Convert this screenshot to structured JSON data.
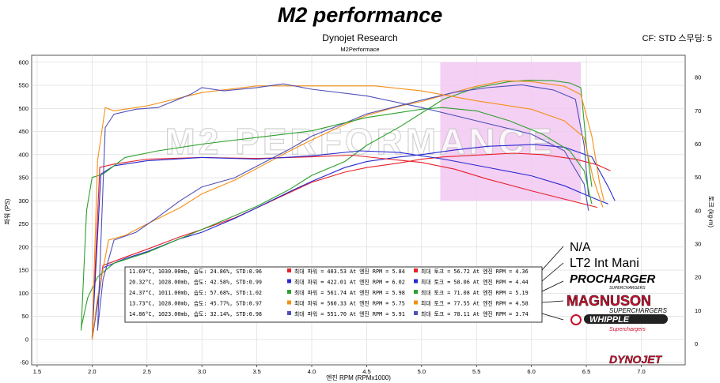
{
  "header": {
    "title": "M2 performance",
    "subtitle": "Dynojet Research",
    "subtitle2": "M2Performace",
    "cf_label": "CF: STD 스무딩: 5",
    "watermark": "M2 PERFORMANCE",
    "brand": "DYNOJET"
  },
  "brands": [
    "N/A",
    "LT2 Int Mani",
    "PROCHARGER",
    "MAGNUSON",
    "WHIPPLE"
  ],
  "brand_subs": {
    "PROCHARGER": "SUPERCHARGERS",
    "MAGNUSON": "SUPERCHARGERS",
    "WHIPPLE": "Superchargers"
  },
  "colors": {
    "red": "#e8202a",
    "blue": "#2828d0",
    "green": "#2ca02c",
    "orange": "#f39018",
    "slate": "#5050b8",
    "highlight": "#f2c8f2",
    "grid": "#d8d8d8"
  },
  "legend": [
    {
      "color": "#e8202a",
      "cond": "11.69°C, 1030.00mb, 습도:  24.86%, STD:0.96",
      "power": "최대 파워 =  403.53 At 엔진 RPM = 5.84",
      "torque": "최대 토크 =  56.72 At 엔진 RPM = 4.36"
    },
    {
      "color": "#2828d0",
      "cond": "20.32°C, 1028.00mb, 습도:  42.58%, STD:0.99",
      "power": "최대 파워 =  422.01 At 엔진 RPM = 6.02",
      "torque": "최대 토크 =  58.06 At 엔진 RPM = 4.44"
    },
    {
      "color": "#2ca02c",
      "cond": "24.37°C, 1011.00mb, 습도:  57.68%, STD:1.02",
      "power": "최대 파워 =  561.74 At 엔진 RPM = 5.98",
      "torque": "최대 토크 =  71.08 At 엔진 RPM = 5.19"
    },
    {
      "color": "#f39018",
      "cond": "13.73°C, 1028.00mb, 습도:  45.77%, STD:0.97",
      "power": "최대 파워 =  560.33 At 엔진 RPM = 5.75",
      "torque": "최대 토크 =  77.55 At 엔진 RPM = 4.58"
    },
    {
      "color": "#5050b8",
      "cond": "14.86°C, 1023.00mb, 습도:  32.14%, STD:0.98",
      "power": "최대 파워 =  551.70 At 엔진 RPM = 5.91",
      "torque": "최대 토크 =  78.11 At 엔진 RPM = 3.74"
    }
  ],
  "chart_data": {
    "type": "line",
    "title": "M2 performance",
    "subtitle": "Dynojet Research",
    "xlabel": "엔진 RPM (RPMx1000)",
    "ylabel_left": "파워 (PS)",
    "ylabel_right": "토크 (kg-m)",
    "xlim": [
      1.45,
      7.4
    ],
    "ylim_left": [
      -55,
      615
    ],
    "ylim_right": [
      -6.3,
      86.7
    ],
    "x_ticks": [
      1.5,
      2.0,
      2.5,
      3.0,
      3.5,
      4.0,
      4.5,
      5.0,
      5.5,
      6.0,
      6.5,
      7.0
    ],
    "y_left_ticks": [
      -50,
      0,
      50,
      100,
      150,
      200,
      250,
      300,
      350,
      400,
      450,
      500,
      550,
      600
    ],
    "y_right_ticks": [
      0,
      10,
      20,
      30,
      40,
      50,
      60,
      70,
      80
    ],
    "grid": true,
    "highlight_x": [
      5.17,
      6.45
    ],
    "highlight_y_left": [
      300,
      600
    ],
    "power_series": [
      {
        "name": "N/A",
        "color": "#e8202a",
        "x": [
          2.0,
          2.1,
          2.3,
          2.5,
          2.8,
          3.0,
          3.3,
          3.5,
          3.8,
          4.0,
          4.3,
          4.5,
          4.8,
          5.0,
          5.2,
          5.5,
          5.84,
          6.1,
          6.4,
          6.6,
          6.72
        ],
        "y": [
          0,
          160,
          178,
          195,
          222,
          238,
          263,
          285,
          318,
          340,
          362,
          372,
          382,
          390,
          395,
          399,
          403,
          400,
          390,
          378,
          365
        ]
      },
      {
        "name": "LT2 Int Mani",
        "color": "#2828d0",
        "x": [
          2.0,
          2.1,
          2.3,
          2.5,
          2.8,
          3.0,
          3.3,
          3.5,
          3.8,
          4.0,
          4.3,
          4.5,
          4.8,
          5.0,
          5.3,
          5.6,
          6.02,
          6.3,
          6.55,
          6.7,
          6.76
        ],
        "y": [
          0,
          155,
          175,
          190,
          218,
          232,
          262,
          285,
          320,
          342,
          372,
          385,
          395,
          400,
          410,
          418,
          422,
          416,
          395,
          330,
          300
        ]
      },
      {
        "name": "PROCHARGER",
        "color": "#2ca02c",
        "x": [
          1.9,
          1.96,
          2.05,
          2.2,
          2.5,
          2.8,
          3.0,
          3.3,
          3.5,
          3.8,
          4.0,
          4.3,
          4.5,
          4.8,
          5.0,
          5.2,
          5.5,
          5.8,
          5.98,
          6.2,
          6.35,
          6.45,
          6.5,
          6.55
        ],
        "y": [
          25,
          90,
          135,
          165,
          188,
          218,
          238,
          268,
          288,
          325,
          355,
          385,
          420,
          460,
          490,
          520,
          545,
          558,
          561,
          560,
          555,
          545,
          420,
          330
        ]
      },
      {
        "name": "MAGNUSON",
        "color": "#f39018",
        "x": [
          2.0,
          2.05,
          2.15,
          2.3,
          2.5,
          2.8,
          3.0,
          3.3,
          3.5,
          3.8,
          4.0,
          4.3,
          4.5,
          4.8,
          5.0,
          5.3,
          5.5,
          5.75,
          6.0,
          6.3,
          6.45,
          6.55,
          6.62,
          6.66
        ],
        "y": [
          0,
          90,
          215,
          225,
          250,
          285,
          315,
          345,
          370,
          408,
          432,
          465,
          485,
          505,
          515,
          535,
          548,
          560,
          558,
          548,
          530,
          440,
          340,
          300
        ]
      },
      {
        "name": "WHIPPLE",
        "color": "#5050b8",
        "x": [
          2.05,
          2.1,
          2.2,
          2.4,
          2.6,
          2.8,
          3.0,
          3.3,
          3.5,
          3.8,
          4.0,
          4.3,
          4.5,
          4.8,
          5.0,
          5.3,
          5.6,
          5.91,
          6.2,
          6.4,
          6.48,
          6.52
        ],
        "y": [
          20,
          130,
          215,
          232,
          265,
          300,
          330,
          350,
          375,
          412,
          440,
          468,
          488,
          506,
          518,
          535,
          545,
          551,
          540,
          520,
          420,
          310
        ]
      }
    ],
    "torque_series": [
      {
        "name": "N/A",
        "color": "#e8202a",
        "x": [
          2.0,
          2.07,
          2.2,
          2.5,
          3.0,
          3.5,
          4.0,
          4.36,
          4.7,
          5.0,
          5.3,
          5.6,
          6.0,
          6.3,
          6.6
        ],
        "y": [
          2,
          53,
          54,
          55.5,
          56,
          55.7,
          56.2,
          56.7,
          55.5,
          54.5,
          52.5,
          49.5,
          46,
          43.5,
          41
        ]
      },
      {
        "name": "LT2 Int Mani",
        "color": "#2828d0",
        "x": [
          2.0,
          2.08,
          2.2,
          2.5,
          3.0,
          3.5,
          4.0,
          4.44,
          4.8,
          5.2,
          5.6,
          6.0,
          6.3,
          6.55,
          6.7
        ],
        "y": [
          2,
          51,
          53.5,
          55,
          56,
          55.5,
          56.5,
          58,
          57.5,
          55.5,
          53,
          50.5,
          47.5,
          44,
          42
        ]
      },
      {
        "name": "PROCHARGER",
        "color": "#2ca02c",
        "x": [
          1.9,
          1.95,
          2.0,
          2.1,
          2.3,
          2.6,
          3.0,
          3.5,
          4.0,
          4.5,
          5.0,
          5.19,
          5.5,
          5.8,
          6.1,
          6.35,
          6.48,
          6.55
        ],
        "y": [
          4,
          40,
          50,
          51,
          56,
          58,
          60,
          62,
          64,
          68,
          70.5,
          71,
          70,
          67,
          63,
          58,
          52,
          42
        ]
      },
      {
        "name": "MAGNUSON",
        "color": "#f39018",
        "x": [
          2.0,
          2.05,
          2.12,
          2.2,
          2.5,
          3.0,
          3.5,
          4.0,
          4.58,
          5.0,
          5.5,
          6.0,
          6.3,
          6.48,
          6.56,
          6.65
        ],
        "y": [
          2,
          55,
          71,
          70,
          71.5,
          75.5,
          77.5,
          77.5,
          77.5,
          76,
          73,
          70.5,
          67,
          62,
          50,
          41
        ]
      },
      {
        "name": "WHIPPLE",
        "color": "#5050b8",
        "x": [
          2.05,
          2.12,
          2.2,
          2.4,
          2.6,
          2.9,
          3.0,
          3.2,
          3.5,
          3.74,
          4.0,
          4.5,
          5.0,
          5.5,
          6.0,
          6.3,
          6.48,
          6.52
        ],
        "y": [
          4,
          65,
          69,
          70.5,
          71,
          75,
          77,
          76,
          77,
          78.1,
          76.5,
          74.5,
          71,
          67,
          63,
          58,
          48,
          40
        ]
      }
    ]
  }
}
